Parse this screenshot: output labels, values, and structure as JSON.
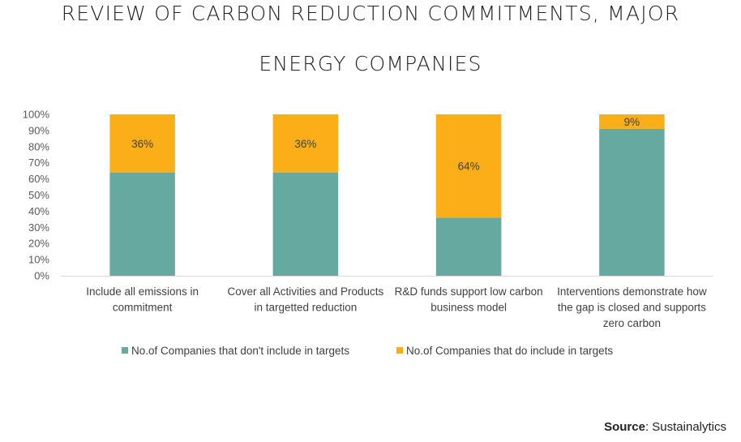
{
  "chart_data": {
    "type": "bar",
    "stacked": true,
    "title": "REVIEW OF CARBON REDUCTION COMMITMENTS, MAJOR ENERGY COMPANIES",
    "title_lines": [
      "REVIEW OF CARBON REDUCTION COMMITMENTS, MAJOR",
      "ENERGY COMPANIES"
    ],
    "xlabel": "",
    "ylabel": "",
    "ylim": [
      0,
      100
    ],
    "y_ticks": [
      "0%",
      "10%",
      "20%",
      "30%",
      "40%",
      "50%",
      "60%",
      "70%",
      "80%",
      "90%",
      "100%"
    ],
    "grid": false,
    "legend_position": "bottom",
    "categories": [
      [
        "Include all emissions in",
        "commitment"
      ],
      [
        "Cover all Activities and Products",
        "in targetted reduction"
      ],
      [
        "R&D funds support low carbon",
        "business model"
      ],
      [
        "Interventions demonstrate how",
        "the gap is closed and supports",
        "zero carbon"
      ]
    ],
    "series": [
      {
        "name": "No.of Companies that don't include in targets",
        "color": "#66A9A0",
        "values": [
          64,
          64,
          36,
          91
        ],
        "labels": [
          "",
          "",
          "",
          ""
        ]
      },
      {
        "name": "No.of Companies that do include in targets",
        "color": "#FBAE17",
        "values": [
          36,
          36,
          64,
          9
        ],
        "labels": [
          "36%",
          "36%",
          "64%",
          "9%"
        ]
      }
    ]
  },
  "source": {
    "label": "Source",
    "value": ": Sustainalytics"
  }
}
